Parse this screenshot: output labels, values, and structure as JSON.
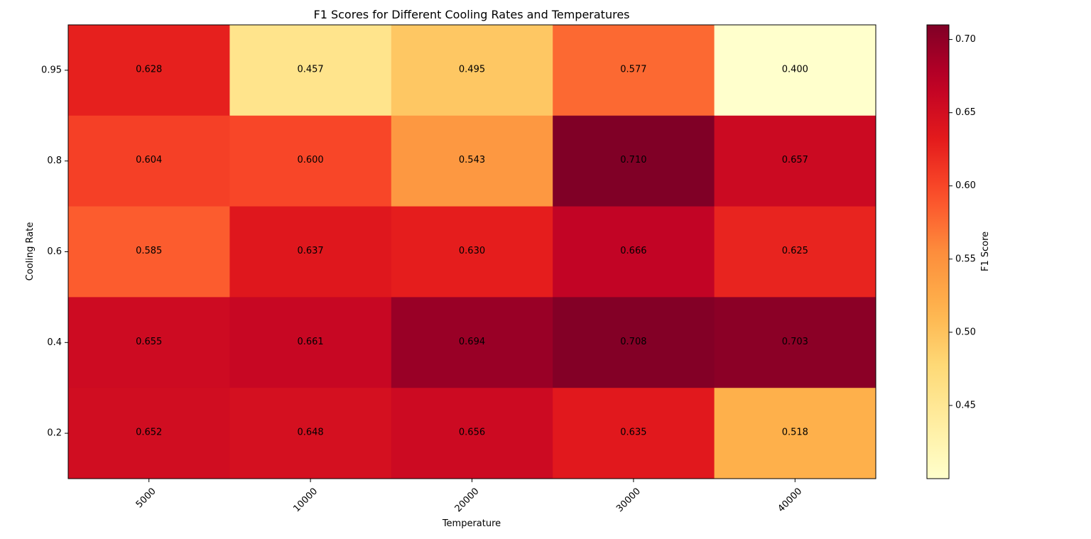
{
  "chart_data": {
    "type": "heatmap",
    "title": "F1 Scores for Different Cooling Rates and Temperatures",
    "xlabel": "Temperature",
    "ylabel": "Cooling Rate",
    "x_categories": [
      "5000",
      "10000",
      "20000",
      "30000",
      "40000"
    ],
    "y_categories": [
      "0.95",
      "0.8",
      "0.6",
      "0.4",
      "0.2"
    ],
    "values": [
      [
        0.628,
        0.457,
        0.495,
        0.577,
        0.4
      ],
      [
        0.604,
        0.6,
        0.543,
        0.71,
        0.657
      ],
      [
        0.585,
        0.637,
        0.63,
        0.666,
        0.625
      ],
      [
        0.655,
        0.661,
        0.694,
        0.708,
        0.703
      ],
      [
        0.652,
        0.648,
        0.656,
        0.635,
        0.518
      ]
    ],
    "value_range": [
      0.4,
      0.71
    ],
    "colormap": "YlOrRd",
    "colorbar": {
      "label": "F1 Score",
      "ticks": [
        "0.45",
        "0.50",
        "0.55",
        "0.60",
        "0.65",
        "0.70"
      ]
    },
    "grid": false
  }
}
